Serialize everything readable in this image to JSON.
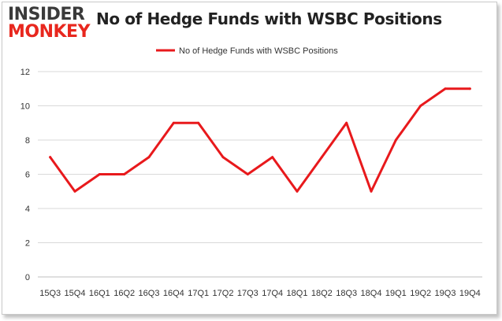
{
  "logo": {
    "top": "INSIDER",
    "bottom": "MONKEY"
  },
  "title": "No of Hedge Funds with WSBC Positions",
  "colors": {
    "series": "#e8191c",
    "grid": "#d9d9d9",
    "brand": "#e8271e"
  },
  "chart_data": {
    "type": "line",
    "title": "No of Hedge Funds with WSBC Positions",
    "xlabel": "",
    "ylabel": "",
    "ylim": [
      0,
      12
    ],
    "yticks": [
      0,
      2,
      4,
      6,
      8,
      10,
      12
    ],
    "grid": "horizontal",
    "legend": "top-center",
    "categories": [
      "15Q3",
      "15Q4",
      "16Q1",
      "16Q2",
      "16Q3",
      "16Q4",
      "17Q1",
      "17Q2",
      "17Q3",
      "17Q4",
      "18Q1",
      "18Q2",
      "18Q3",
      "18Q4",
      "19Q1",
      "19Q2",
      "19Q3",
      "19Q4"
    ],
    "series": [
      {
        "name": "No of Hedge Funds with WSBC Positions",
        "values": [
          7,
          5,
          6,
          6,
          7,
          9,
          9,
          7,
          6,
          7,
          5,
          7,
          9,
          5,
          8,
          10,
          11,
          11
        ]
      }
    ]
  }
}
